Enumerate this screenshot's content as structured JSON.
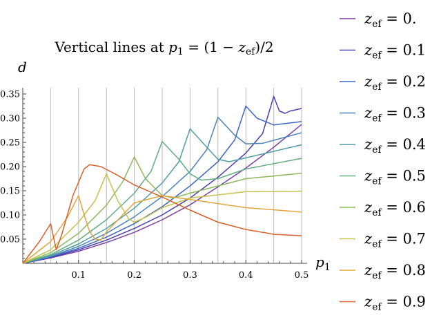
{
  "chart_data": {
    "type": "line",
    "title": "Vertical lines at p₁ = (1 − z_ef)/2",
    "title_parts": {
      "prefix": "Vertical lines at ",
      "var": "p",
      "var_sub": "1",
      "rhs_a": " = (1 − ",
      "z": "z",
      "z_sub": "ef",
      "rhs_b": ")/2"
    },
    "xlabel": {
      "var": "p",
      "sub": "1"
    },
    "ylabel": "d",
    "xlim": [
      0,
      0.5
    ],
    "ylim": [
      0,
      0.36
    ],
    "xticks": [
      "0.1",
      "0.2",
      "0.3",
      "0.4",
      "0.5"
    ],
    "yticks": [
      "0.05",
      "0.10",
      "0.15",
      "0.20",
      "0.25",
      "0.30",
      "0.35"
    ],
    "vertical_lines": [
      0.05,
      0.1,
      0.15,
      0.2,
      0.25,
      0.3,
      0.35,
      0.4,
      0.45,
      0.5
    ],
    "legend_placement": "right",
    "series": [
      {
        "name": "0.",
        "color": "#7b3fa6",
        "peak": 0.5,
        "points": [
          [
            0,
            0
          ],
          [
            0.05,
            0.011
          ],
          [
            0.1,
            0.025
          ],
          [
            0.15,
            0.043
          ],
          [
            0.2,
            0.064
          ],
          [
            0.25,
            0.09
          ],
          [
            0.3,
            0.121
          ],
          [
            0.35,
            0.158
          ],
          [
            0.4,
            0.197
          ],
          [
            0.45,
            0.24
          ],
          [
            0.5,
            0.287
          ]
        ]
      },
      {
        "name": "0.1",
        "color": "#4a3fb0",
        "peak": 0.45,
        "points": [
          [
            0,
            0
          ],
          [
            0.05,
            0.012
          ],
          [
            0.1,
            0.028
          ],
          [
            0.15,
            0.048
          ],
          [
            0.2,
            0.072
          ],
          [
            0.25,
            0.1
          ],
          [
            0.3,
            0.135
          ],
          [
            0.35,
            0.178
          ],
          [
            0.4,
            0.228
          ],
          [
            0.43,
            0.268
          ],
          [
            0.45,
            0.345
          ],
          [
            0.46,
            0.315
          ],
          [
            0.47,
            0.31
          ],
          [
            0.48,
            0.315
          ],
          [
            0.5,
            0.32
          ]
        ]
      },
      {
        "name": "0.2",
        "color": "#3e66c4",
        "peak": 0.4,
        "points": [
          [
            0,
            0
          ],
          [
            0.05,
            0.013
          ],
          [
            0.1,
            0.031
          ],
          [
            0.15,
            0.054
          ],
          [
            0.2,
            0.082
          ],
          [
            0.25,
            0.117
          ],
          [
            0.3,
            0.16
          ],
          [
            0.35,
            0.21
          ],
          [
            0.38,
            0.255
          ],
          [
            0.4,
            0.325
          ],
          [
            0.42,
            0.3
          ],
          [
            0.45,
            0.286
          ],
          [
            0.5,
            0.293
          ]
        ]
      },
      {
        "name": "0.3",
        "color": "#4a84b8",
        "peak": 0.35,
        "points": [
          [
            0,
            0
          ],
          [
            0.05,
            0.014
          ],
          [
            0.1,
            0.035
          ],
          [
            0.15,
            0.062
          ],
          [
            0.2,
            0.096
          ],
          [
            0.25,
            0.138
          ],
          [
            0.3,
            0.19
          ],
          [
            0.33,
            0.235
          ],
          [
            0.35,
            0.302
          ],
          [
            0.38,
            0.265
          ],
          [
            0.4,
            0.247
          ],
          [
            0.43,
            0.248
          ],
          [
            0.5,
            0.27
          ]
        ]
      },
      {
        "name": "0.4",
        "color": "#4f9da5",
        "peak": 0.3,
        "points": [
          [
            0,
            0
          ],
          [
            0.05,
            0.016
          ],
          [
            0.1,
            0.04
          ],
          [
            0.15,
            0.072
          ],
          [
            0.2,
            0.114
          ],
          [
            0.25,
            0.166
          ],
          [
            0.28,
            0.21
          ],
          [
            0.3,
            0.278
          ],
          [
            0.33,
            0.24
          ],
          [
            0.35,
            0.215
          ],
          [
            0.37,
            0.21
          ],
          [
            0.4,
            0.218
          ],
          [
            0.5,
            0.245
          ]
        ]
      },
      {
        "name": "0.5",
        "color": "#62ac7e",
        "peak": 0.25,
        "points": [
          [
            0,
            0
          ],
          [
            0.05,
            0.018
          ],
          [
            0.1,
            0.048
          ],
          [
            0.15,
            0.09
          ],
          [
            0.2,
            0.145
          ],
          [
            0.23,
            0.19
          ],
          [
            0.25,
            0.252
          ],
          [
            0.28,
            0.215
          ],
          [
            0.3,
            0.185
          ],
          [
            0.32,
            0.172
          ],
          [
            0.35,
            0.175
          ],
          [
            0.4,
            0.195
          ],
          [
            0.5,
            0.217
          ]
        ]
      },
      {
        "name": "0.6",
        "color": "#8cb85c",
        "peak": 0.2,
        "points": [
          [
            0,
            0
          ],
          [
            0.05,
            0.022
          ],
          [
            0.1,
            0.062
          ],
          [
            0.15,
            0.12
          ],
          [
            0.18,
            0.17
          ],
          [
            0.2,
            0.22
          ],
          [
            0.22,
            0.175
          ],
          [
            0.25,
            0.14
          ],
          [
            0.27,
            0.135
          ],
          [
            0.3,
            0.145
          ],
          [
            0.4,
            0.175
          ],
          [
            0.5,
            0.186
          ]
        ]
      },
      {
        "name": "0.7",
        "color": "#c8c048",
        "peak": 0.15,
        "points": [
          [
            0,
            0
          ],
          [
            0.05,
            0.028
          ],
          [
            0.1,
            0.085
          ],
          [
            0.13,
            0.13
          ],
          [
            0.15,
            0.185
          ],
          [
            0.17,
            0.13
          ],
          [
            0.19,
            0.092
          ],
          [
            0.2,
            0.085
          ],
          [
            0.22,
            0.095
          ],
          [
            0.25,
            0.115
          ],
          [
            0.3,
            0.135
          ],
          [
            0.4,
            0.148
          ],
          [
            0.5,
            0.149
          ]
        ]
      },
      {
        "name": "0.8",
        "color": "#e2a53e",
        "peak": 0.1,
        "points": [
          [
            0,
            0
          ],
          [
            0.05,
            0.045
          ],
          [
            0.08,
            0.095
          ],
          [
            0.1,
            0.14
          ],
          [
            0.11,
            0.1
          ],
          [
            0.12,
            0.065
          ],
          [
            0.13,
            0.05
          ],
          [
            0.14,
            0.048
          ],
          [
            0.15,
            0.065
          ],
          [
            0.2,
            0.125
          ],
          [
            0.25,
            0.14
          ],
          [
            0.3,
            0.132
          ],
          [
            0.4,
            0.115
          ],
          [
            0.5,
            0.106
          ]
        ]
      },
      {
        "name": "0.9",
        "color": "#d95f2a",
        "peak": 0.05,
        "points": [
          [
            0,
            0
          ],
          [
            0.03,
            0.045
          ],
          [
            0.05,
            0.082
          ],
          [
            0.06,
            0.028
          ],
          [
            0.07,
            0.06
          ],
          [
            0.09,
            0.14
          ],
          [
            0.11,
            0.195
          ],
          [
            0.12,
            0.204
          ],
          [
            0.14,
            0.2
          ],
          [
            0.17,
            0.182
          ],
          [
            0.2,
            0.162
          ],
          [
            0.25,
            0.137
          ],
          [
            0.3,
            0.11
          ],
          [
            0.35,
            0.085
          ],
          [
            0.4,
            0.07
          ],
          [
            0.45,
            0.06
          ],
          [
            0.5,
            0.057
          ]
        ]
      }
    ]
  }
}
